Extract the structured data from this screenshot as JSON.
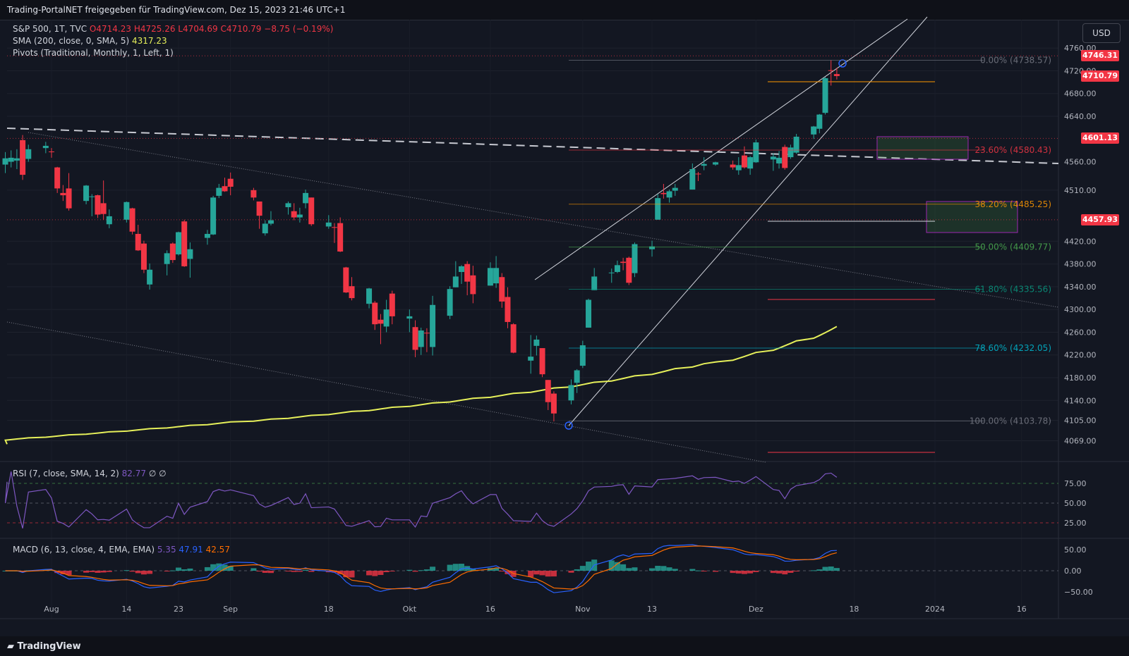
{
  "header": {
    "text": "Trading-PortalNET freigegeben für TradingView.com, Dez 15, 2023 21:46 UTC+1"
  },
  "legend": {
    "symbol": "S&P 500, 1T, TVC",
    "ohlc": {
      "o": "O4714.23",
      "h": "H4725.26",
      "l": "L4704.69",
      "c": "C4710.79",
      "change": "−8.75 (−0.19%)"
    },
    "sma": {
      "label": "SMA (200, close, 0, SMA, 5)",
      "value": "4317.23"
    },
    "pivots": {
      "label": "Pivots (Traditional, Monthly, 1, Left, 1)"
    },
    "rsi": {
      "label": "RSI (7, close, SMA, 14, 2)",
      "value": "82.77",
      "extra": "∅ ∅"
    },
    "macd": {
      "label": "MACD (6, 13, close, 4, EMA, EMA)",
      "v1": "5.35",
      "v2": "47.91",
      "v3": "42.57"
    }
  },
  "currency": "USD",
  "price_badges": [
    {
      "label": "4746.31",
      "price": 4746.31
    },
    {
      "label": "4710.79",
      "price": 4710.79
    },
    {
      "label": "4601.13",
      "price": 4601.13
    },
    {
      "label": "4457.93",
      "price": 4457.93
    }
  ],
  "footer": {
    "logo": "TradingView"
  },
  "colors": {
    "background": "#131722",
    "up": "#26a69a",
    "down": "#f23645",
    "sma": "#e6f05a",
    "rsi": "#7e57c2",
    "macd": "#2962ff",
    "signal": "#ff6d00"
  },
  "chart_data": {
    "type": "candlestick",
    "y_ticks": [
      {
        "value": 4760,
        "label": "4760.00"
      },
      {
        "value": 4720,
        "label": "4720.00"
      },
      {
        "value": 4680,
        "label": "4680.00"
      },
      {
        "value": 4640,
        "label": "4640.00"
      },
      {
        "value": 4560,
        "label": "4560.00"
      },
      {
        "value": 4510,
        "label": "4510.00"
      },
      {
        "value": 4420,
        "label": "4420.00"
      },
      {
        "value": 4380,
        "label": "4380.00"
      },
      {
        "value": 4340,
        "label": "4340.00"
      },
      {
        "value": 4300,
        "label": "4300.00"
      },
      {
        "value": 4260,
        "label": "4260.00"
      },
      {
        "value": 4220,
        "label": "4220.00"
      },
      {
        "value": 4180,
        "label": "4180.00"
      },
      {
        "value": 4140,
        "label": "4140.00"
      },
      {
        "value": 4105,
        "label": "4105.00"
      },
      {
        "value": 4069,
        "label": "4069.00"
      }
    ],
    "x_ticks": [
      {
        "label": "Aug",
        "date": "2023-08-01"
      },
      {
        "label": "14",
        "date": "2023-08-14"
      },
      {
        "label": "23",
        "date": "2023-08-23"
      },
      {
        "label": "Sep",
        "date": "2023-09-01"
      },
      {
        "label": "18",
        "date": "2023-09-18"
      },
      {
        "label": "Okt",
        "date": "2023-10-02"
      },
      {
        "label": "16",
        "date": "2023-10-16"
      },
      {
        "label": "Nov",
        "date": "2023-11-01"
      },
      {
        "label": "13",
        "date": "2023-11-13"
      },
      {
        "label": "Dez",
        "date": "2023-12-01"
      },
      {
        "label": "18",
        "date": "2023-12-18"
      },
      {
        "label": "2024",
        "date": "2024-01-01"
      },
      {
        "label": "16",
        "date": "2024-01-16"
      }
    ],
    "fib_levels": [
      {
        "label": "0.00% (4738.57)",
        "value": 4738.57,
        "color": "#787b86"
      },
      {
        "label": "23.60% (4580.43)",
        "value": 4580.43,
        "color": "#f23645"
      },
      {
        "label": "38.20% (4485.25)",
        "value": 4485.25,
        "color": "#ff9800"
      },
      {
        "label": "50.00% (4409.77)",
        "value": 4409.77,
        "color": "#4caf50"
      },
      {
        "label": "61.80% (4335.56)",
        "value": 4335.56,
        "color": "#089981"
      },
      {
        "label": "78.60% (4232.05)",
        "value": 4232.05,
        "color": "#00bcd4"
      },
      {
        "label": "100.00% (4103.78)",
        "value": 4103.78,
        "color": "#787b86"
      }
    ],
    "candles": [
      {
        "d": "2023-07-24",
        "o": 4555,
        "h": 4577,
        "l": 4540,
        "c": 4566
      },
      {
        "d": "2023-07-25",
        "o": 4560,
        "h": 4580,
        "l": 4550,
        "c": 4567
      },
      {
        "d": "2023-07-26",
        "o": 4562,
        "h": 4582,
        "l": 4547,
        "c": 4566
      },
      {
        "d": "2023-07-27",
        "o": 4598,
        "h": 4607,
        "l": 4528,
        "c": 4537
      },
      {
        "d": "2023-07-28",
        "o": 4565,
        "h": 4590,
        "l": 4560,
        "c": 4582
      },
      {
        "d": "2023-07-31",
        "o": 4584,
        "h": 4595,
        "l": 4575,
        "c": 4588
      },
      {
        "d": "2023-08-01",
        "o": 4578,
        "h": 4584,
        "l": 4567,
        "c": 4577
      },
      {
        "d": "2023-08-02",
        "o": 4550,
        "h": 4551,
        "l": 4505,
        "c": 4513
      },
      {
        "d": "2023-08-03",
        "o": 4505,
        "h": 4519,
        "l": 4491,
        "c": 4501
      },
      {
        "d": "2023-08-04",
        "o": 4513,
        "h": 4540,
        "l": 4474,
        "c": 4478
      },
      {
        "d": "2023-08-07",
        "o": 4491,
        "h": 4519,
        "l": 4485,
        "c": 4518
      },
      {
        "d": "2023-08-08",
        "o": 4498,
        "h": 4503,
        "l": 4464,
        "c": 4499
      },
      {
        "d": "2023-08-09",
        "o": 4501,
        "h": 4502,
        "l": 4461,
        "c": 4467
      },
      {
        "d": "2023-08-10",
        "o": 4487,
        "h": 4527,
        "l": 4458,
        "c": 4468
      },
      {
        "d": "2023-08-11",
        "o": 4450,
        "h": 4476,
        "l": 4443,
        "c": 4464
      },
      {
        "d": "2023-08-14",
        "o": 4458,
        "h": 4490,
        "l": 4453,
        "c": 4489
      },
      {
        "d": "2023-08-15",
        "o": 4478,
        "h": 4479,
        "l": 4432,
        "c": 4437
      },
      {
        "d": "2023-08-16",
        "o": 4433,
        "h": 4449,
        "l": 4403,
        "c": 4404
      },
      {
        "d": "2023-08-17",
        "o": 4416,
        "h": 4421,
        "l": 4364,
        "c": 4370
      },
      {
        "d": "2023-08-18",
        "o": 4344,
        "h": 4381,
        "l": 4335,
        "c": 4370
      },
      {
        "d": "2023-08-21",
        "o": 4380,
        "h": 4404,
        "l": 4360,
        "c": 4399
      },
      {
        "d": "2023-08-22",
        "o": 4416,
        "h": 4418,
        "l": 4382,
        "c": 4387
      },
      {
        "d": "2023-08-23",
        "o": 4397,
        "h": 4437,
        "l": 4395,
        "c": 4436
      },
      {
        "d": "2023-08-24",
        "o": 4455,
        "h": 4458,
        "l": 4375,
        "c": 4376
      },
      {
        "d": "2023-08-25",
        "o": 4389,
        "h": 4418,
        "l": 4356,
        "c": 4406
      },
      {
        "d": "2023-08-28",
        "o": 4426,
        "h": 4440,
        "l": 4414,
        "c": 4433
      },
      {
        "d": "2023-08-29",
        "o": 4432,
        "h": 4500,
        "l": 4431,
        "c": 4497
      },
      {
        "d": "2023-08-30",
        "o": 4500,
        "h": 4521,
        "l": 4496,
        "c": 4514
      },
      {
        "d": "2023-08-31",
        "o": 4517,
        "h": 4532,
        "l": 4507,
        "c": 4508
      },
      {
        "d": "2023-09-01",
        "o": 4530,
        "h": 4541,
        "l": 4501,
        "c": 4516
      },
      {
        "d": "2023-09-05",
        "o": 4510,
        "h": 4514,
        "l": 4492,
        "c": 4497
      },
      {
        "d": "2023-09-06",
        "o": 4490,
        "h": 4490,
        "l": 4442,
        "c": 4465
      },
      {
        "d": "2023-09-07",
        "o": 4434,
        "h": 4457,
        "l": 4430,
        "c": 4451
      },
      {
        "d": "2023-09-08",
        "o": 4451,
        "h": 4473,
        "l": 4448,
        "c": 4457
      },
      {
        "d": "2023-09-11",
        "o": 4480,
        "h": 4490,
        "l": 4467,
        "c": 4487
      },
      {
        "d": "2023-09-12",
        "o": 4473,
        "h": 4487,
        "l": 4457,
        "c": 4462
      },
      {
        "d": "2023-09-13",
        "o": 4462,
        "h": 4479,
        "l": 4453,
        "c": 4467
      },
      {
        "d": "2023-09-14",
        "o": 4487,
        "h": 4511,
        "l": 4478,
        "c": 4505
      },
      {
        "d": "2023-09-15",
        "o": 4497,
        "h": 4497,
        "l": 4447,
        "c": 4450
      },
      {
        "d": "2023-09-18",
        "o": 4446,
        "h": 4466,
        "l": 4442,
        "c": 4453
      },
      {
        "d": "2023-09-19",
        "o": 4445,
        "h": 4452,
        "l": 4417,
        "c": 4444
      },
      {
        "d": "2023-09-20",
        "o": 4452,
        "h": 4462,
        "l": 4401,
        "c": 4402
      },
      {
        "d": "2023-09-21",
        "o": 4374,
        "h": 4375,
        "l": 4329,
        "c": 4330
      },
      {
        "d": "2023-09-22",
        "o": 4341,
        "h": 4357,
        "l": 4316,
        "c": 4320
      },
      {
        "d": "2023-09-25",
        "o": 4310,
        "h": 4338,
        "l": 4302,
        "c": 4337
      },
      {
        "d": "2023-09-26",
        "o": 4312,
        "h": 4315,
        "l": 4264,
        "c": 4274
      },
      {
        "d": "2023-09-27",
        "o": 4282,
        "h": 4292,
        "l": 4239,
        "c": 4275
      },
      {
        "d": "2023-09-28",
        "o": 4270,
        "h": 4317,
        "l": 4260,
        "c": 4300
      },
      {
        "d": "2023-09-29",
        "o": 4328,
        "h": 4333,
        "l": 4274,
        "c": 4288
      },
      {
        "d": "2023-10-02",
        "o": 4284,
        "h": 4300,
        "l": 4260,
        "c": 4288
      },
      {
        "d": "2023-10-03",
        "o": 4269,
        "h": 4281,
        "l": 4216,
        "c": 4229
      },
      {
        "d": "2023-10-04",
        "o": 4234,
        "h": 4268,
        "l": 4220,
        "c": 4263
      },
      {
        "d": "2023-10-05",
        "o": 4259,
        "h": 4267,
        "l": 4225,
        "c": 4258
      },
      {
        "d": "2023-10-06",
        "o": 4234,
        "h": 4324,
        "l": 4219,
        "c": 4308
      },
      {
        "d": "2023-10-09",
        "o": 4289,
        "h": 4341,
        "l": 4283,
        "c": 4336
      },
      {
        "d": "2023-10-10",
        "o": 4339,
        "h": 4385,
        "l": 4339,
        "c": 4358
      },
      {
        "d": "2023-10-11",
        "o": 4366,
        "h": 4378,
        "l": 4345,
        "c": 4376
      },
      {
        "d": "2023-10-12",
        "o": 4380,
        "h": 4385,
        "l": 4325,
        "c": 4349
      },
      {
        "d": "2023-10-13",
        "o": 4360,
        "h": 4377,
        "l": 4311,
        "c": 4327
      },
      {
        "d": "2023-10-16",
        "o": 4342,
        "h": 4383,
        "l": 4342,
        "c": 4373
      },
      {
        "d": "2023-10-17",
        "o": 4346,
        "h": 4394,
        "l": 4338,
        "c": 4373
      },
      {
        "d": "2023-10-18",
        "o": 4357,
        "h": 4364,
        "l": 4303,
        "c": 4314
      },
      {
        "d": "2023-10-19",
        "o": 4322,
        "h": 4339,
        "l": 4267,
        "c": 4278
      },
      {
        "d": "2023-10-20",
        "o": 4274,
        "h": 4276,
        "l": 4223,
        "c": 4224
      },
      {
        "d": "2023-10-23",
        "o": 4210,
        "h": 4255,
        "l": 4187,
        "c": 4217
      },
      {
        "d": "2023-10-24",
        "o": 4236,
        "h": 4254,
        "l": 4219,
        "c": 4247
      },
      {
        "d": "2023-10-25",
        "o": 4232,
        "h": 4232,
        "l": 4181,
        "c": 4186
      },
      {
        "d": "2023-10-26",
        "o": 4176,
        "h": 4176,
        "l": 4123,
        "c": 4137
      },
      {
        "d": "2023-10-27",
        "o": 4152,
        "h": 4156,
        "l": 4103,
        "c": 4117
      },
      {
        "d": "2023-10-30",
        "o": 4140,
        "h": 4177,
        "l": 4133,
        "c": 4167
      },
      {
        "d": "2023-10-31",
        "o": 4171,
        "h": 4195,
        "l": 4153,
        "c": 4193
      },
      {
        "d": "2023-11-01",
        "o": 4201,
        "h": 4245,
        "l": 4197,
        "c": 4237
      },
      {
        "d": "2023-11-02",
        "o": 4268,
        "h": 4319,
        "l": 4268,
        "c": 4317
      },
      {
        "d": "2023-11-03",
        "o": 4334,
        "h": 4373,
        "l": 4334,
        "c": 4358
      },
      {
        "d": "2023-11-06",
        "o": 4364,
        "h": 4372,
        "l": 4347,
        "c": 4365
      },
      {
        "d": "2023-11-07",
        "o": 4366,
        "h": 4386,
        "l": 4364,
        "c": 4378
      },
      {
        "d": "2023-11-08",
        "o": 4384,
        "h": 4391,
        "l": 4369,
        "c": 4382
      },
      {
        "d": "2023-11-09",
        "o": 4391,
        "h": 4393,
        "l": 4343,
        "c": 4347
      },
      {
        "d": "2023-11-10",
        "o": 4364,
        "h": 4418,
        "l": 4357,
        "c": 4415
      },
      {
        "d": "2023-11-13",
        "o": 4406,
        "h": 4421,
        "l": 4393,
        "c": 4411
      },
      {
        "d": "2023-11-14",
        "o": 4458,
        "h": 4503,
        "l": 4458,
        "c": 4496
      },
      {
        "d": "2023-11-15",
        "o": 4505,
        "h": 4521,
        "l": 4495,
        "c": 4503
      },
      {
        "d": "2023-11-16",
        "o": 4497,
        "h": 4511,
        "l": 4488,
        "c": 4508
      },
      {
        "d": "2023-11-17",
        "o": 4509,
        "h": 4521,
        "l": 4500,
        "c": 4514
      },
      {
        "d": "2023-11-20",
        "o": 4511,
        "h": 4557,
        "l": 4511,
        "c": 4547
      },
      {
        "d": "2023-11-21",
        "o": 4539,
        "h": 4542,
        "l": 4526,
        "c": 4538
      },
      {
        "d": "2023-11-22",
        "o": 4553,
        "h": 4568,
        "l": 4545,
        "c": 4556
      },
      {
        "d": "2023-11-24",
        "o": 4555,
        "h": 4560,
        "l": 4553,
        "c": 4559
      },
      {
        "d": "2023-11-27",
        "o": 4555,
        "h": 4562,
        "l": 4546,
        "c": 4550
      },
      {
        "d": "2023-11-28",
        "o": 4545,
        "h": 4568,
        "l": 4537,
        "c": 4554
      },
      {
        "d": "2023-11-29",
        "o": 4571,
        "h": 4587,
        "l": 4548,
        "c": 4550
      },
      {
        "d": "2023-11-30",
        "o": 4548,
        "h": 4570,
        "l": 4537,
        "c": 4568
      },
      {
        "d": "2023-12-01",
        "o": 4559,
        "h": 4599,
        "l": 4558,
        "c": 4594
      },
      {
        "d": "2023-12-04",
        "o": 4564,
        "h": 4575,
        "l": 4544,
        "c": 4569
      },
      {
        "d": "2023-12-05",
        "o": 4557,
        "h": 4579,
        "l": 4548,
        "c": 4567
      },
      {
        "d": "2023-12-06",
        "o": 4586,
        "h": 4590,
        "l": 4546,
        "c": 4549
      },
      {
        "d": "2023-12-07",
        "o": 4568,
        "h": 4590,
        "l": 4565,
        "c": 4585
      },
      {
        "d": "2023-12-08",
        "o": 4576,
        "h": 4609,
        "l": 4574,
        "c": 4604
      },
      {
        "d": "2023-12-11",
        "o": 4608,
        "h": 4623,
        "l": 4600,
        "c": 4622
      },
      {
        "d": "2023-12-12",
        "o": 4618,
        "h": 4644,
        "l": 4610,
        "c": 4643
      },
      {
        "d": "2023-12-13",
        "o": 4646,
        "h": 4709,
        "l": 4643,
        "c": 4707
      },
      {
        "d": "2023-12-14",
        "o": 4721,
        "h": 4739,
        "l": 4694,
        "c": 4720
      },
      {
        "d": "2023-12-15",
        "o": 4714.23,
        "h": 4725.26,
        "l": 4704.69,
        "c": 4710.79
      }
    ]
  }
}
